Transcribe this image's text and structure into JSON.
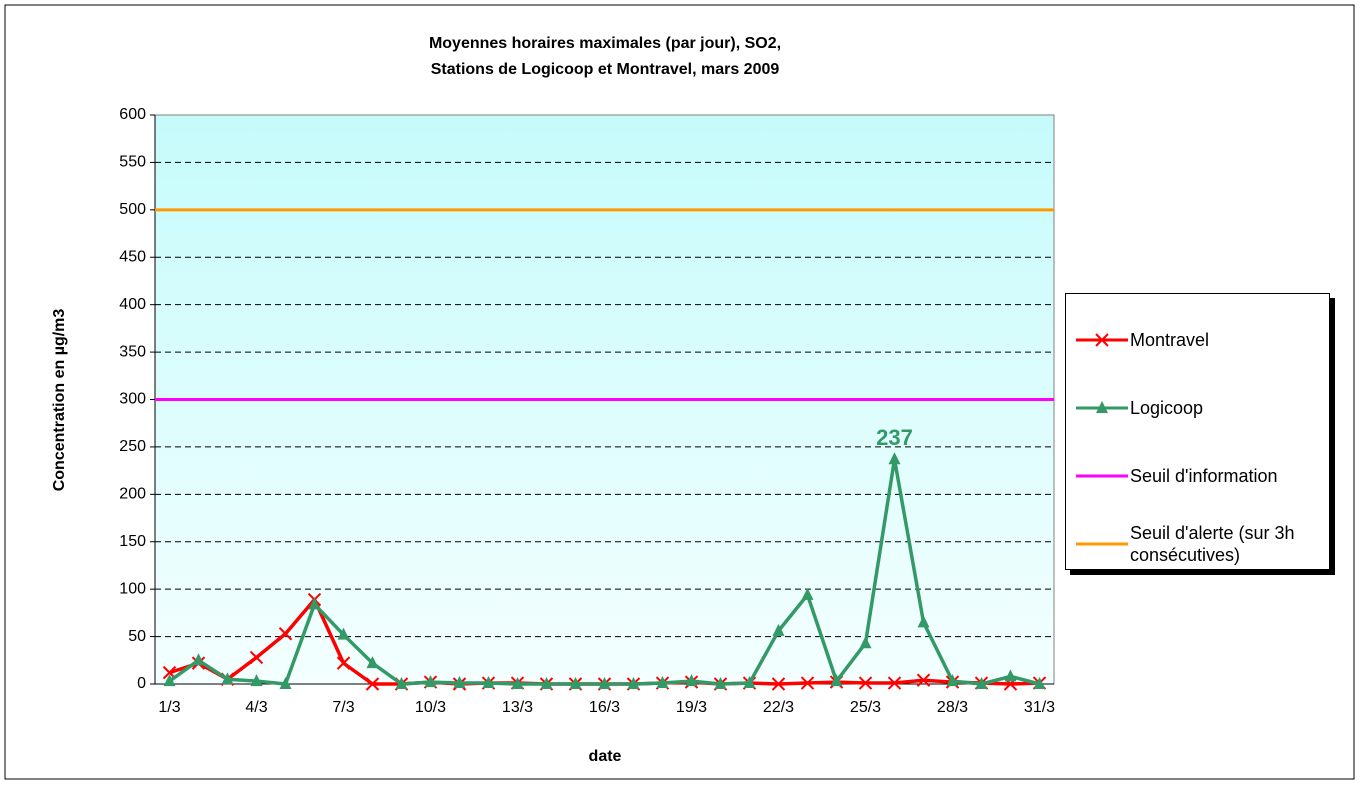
{
  "chart_data": {
    "type": "line",
    "title": [
      "Moyennes horaires maximales (par jour), SO2,",
      "Stations de Logicoop et Montravel, mars 2009"
    ],
    "x_label": "date",
    "y_label": "Concentration en µg/m3",
    "categories": [
      "1/3",
      null,
      null,
      "4/3",
      null,
      null,
      "7/3",
      null,
      null,
      "10/3",
      null,
      null,
      "13/3",
      null,
      null,
      "16/3",
      null,
      null,
      "19/3",
      null,
      null,
      "22/3",
      null,
      null,
      "25/3",
      null,
      null,
      "28/3",
      null,
      null,
      "31/3"
    ],
    "series": [
      {
        "name": "Montravel",
        "color": "#ff0000",
        "marker": "x",
        "values": [
          12,
          22,
          5,
          28,
          53,
          89,
          22,
          0,
          0,
          2,
          0,
          1,
          1,
          0,
          0,
          0,
          0,
          1,
          2,
          0,
          1,
          0,
          1,
          2,
          1,
          1,
          4,
          2,
          1,
          0,
          1
        ]
      },
      {
        "name": "Logicoop",
        "color": "#339966",
        "marker": "triangle",
        "values": [
          3,
          25,
          5,
          3,
          0,
          84,
          52,
          22,
          0,
          2,
          1,
          1,
          0,
          0,
          0,
          0,
          0,
          1,
          3,
          0,
          1,
          56,
          94,
          3,
          43,
          237,
          65,
          3,
          0,
          8,
          0
        ],
        "value_labels": [
          null,
          null,
          null,
          null,
          null,
          null,
          null,
          null,
          null,
          null,
          null,
          null,
          null,
          null,
          null,
          null,
          null,
          null,
          null,
          null,
          null,
          null,
          null,
          null,
          null,
          "237",
          null,
          null,
          null,
          null,
          null
        ]
      }
    ],
    "reference_lines": [
      {
        "name": "Seuil d'information",
        "color": "#ff00ff",
        "value": 300
      },
      {
        "name": "Seuil d'alerte (sur 3h consécutives)",
        "color": "#ff9900",
        "value": 500
      }
    ],
    "ylim": [
      0,
      600
    ],
    "yticks": [
      0,
      50,
      100,
      150,
      200,
      250,
      300,
      350,
      400,
      450,
      500,
      550,
      600
    ],
    "grid": true,
    "legend": "right"
  }
}
